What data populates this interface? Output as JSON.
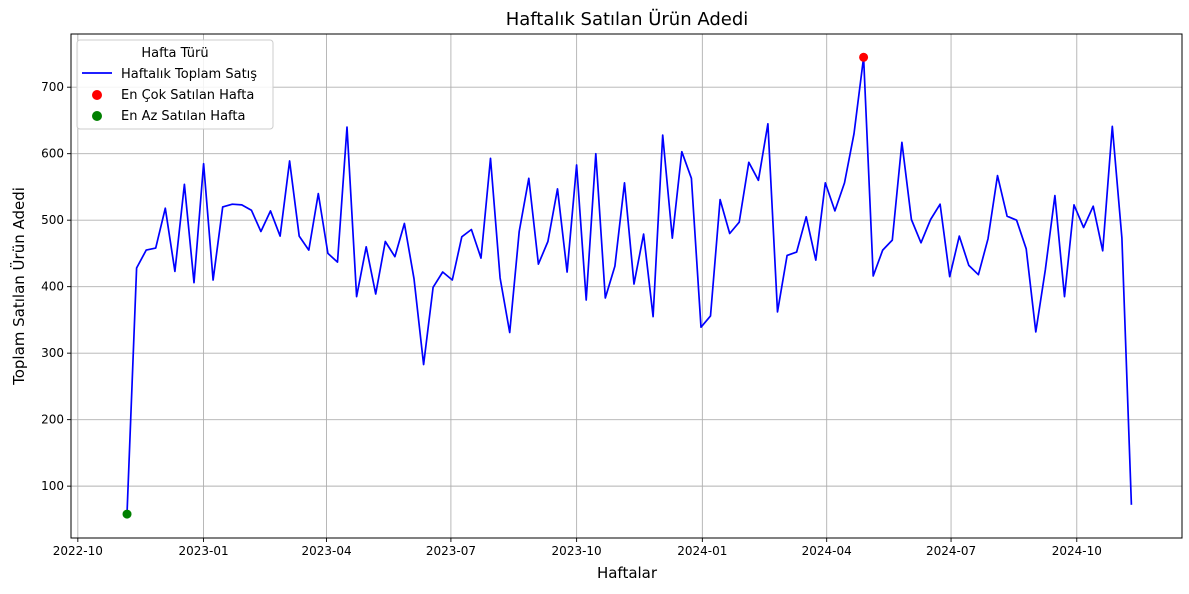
{
  "chart_data": {
    "type": "line",
    "title": "Haftalık Satılan Ürün Adedi",
    "xlabel": "Haftalar",
    "ylabel": "Toplam Satılan Ürün Adedi",
    "grid": true,
    "legend_title": "Hafta Türü",
    "legend_position": "top-left",
    "xlim": [
      "2022-09-26",
      "2024-12-17"
    ],
    "ylim": [
      22,
      780
    ],
    "x_ticks": [
      "2022-10-01",
      "2023-01-01",
      "2023-04-01",
      "2023-07-01",
      "2023-10-01",
      "2024-01-01",
      "2024-04-01",
      "2024-07-01",
      "2024-10-01"
    ],
    "x_tick_labels": [
      "2022-10",
      "2023-01",
      "2023-04",
      "2023-07",
      "2023-10",
      "2024-01",
      "2024-04",
      "2024-07",
      "2024-10"
    ],
    "y_ticks": [
      100,
      200,
      300,
      400,
      500,
      600,
      700
    ],
    "y_tick_labels": [
      "100",
      "200",
      "300",
      "400",
      "500",
      "600",
      "700"
    ],
    "series": [
      {
        "name": "Haftalık Toplam Satış",
        "color": "#0000ff",
        "x": [
          "2022-11-06",
          "2022-11-13",
          "2022-11-20",
          "2022-11-27",
          "2022-12-04",
          "2022-12-11",
          "2022-12-18",
          "2022-12-25",
          "2023-01-01",
          "2023-01-08",
          "2023-01-15",
          "2023-01-22",
          "2023-01-29",
          "2023-02-05",
          "2023-02-12",
          "2023-02-19",
          "2023-02-26",
          "2023-03-05",
          "2023-03-12",
          "2023-03-19",
          "2023-03-26",
          "2023-04-02",
          "2023-04-09",
          "2023-04-16",
          "2023-04-23",
          "2023-04-30",
          "2023-05-07",
          "2023-05-14",
          "2023-05-21",
          "2023-05-28",
          "2023-06-04",
          "2023-06-11",
          "2023-06-18",
          "2023-06-25",
          "2023-07-02",
          "2023-07-09",
          "2023-07-16",
          "2023-07-23",
          "2023-07-30",
          "2023-08-06",
          "2023-08-13",
          "2023-08-20",
          "2023-08-27",
          "2023-09-03",
          "2023-09-10",
          "2023-09-17",
          "2023-09-24",
          "2023-10-01",
          "2023-10-08",
          "2023-10-15",
          "2023-10-22",
          "2023-10-29",
          "2023-11-05",
          "2023-11-12",
          "2023-11-19",
          "2023-11-26",
          "2023-12-03",
          "2023-12-10",
          "2023-12-17",
          "2023-12-24",
          "2023-12-31",
          "2024-01-07",
          "2024-01-14",
          "2024-01-21",
          "2024-01-28",
          "2024-02-04",
          "2024-02-11",
          "2024-02-18",
          "2024-02-25",
          "2024-03-03",
          "2024-03-10",
          "2024-03-17",
          "2024-03-24",
          "2024-03-31",
          "2024-04-07",
          "2024-04-14",
          "2024-04-21",
          "2024-04-28",
          "2024-05-05",
          "2024-05-12",
          "2024-05-19",
          "2024-05-26",
          "2024-06-02",
          "2024-06-09",
          "2024-06-16",
          "2024-06-23",
          "2024-06-30",
          "2024-07-07",
          "2024-07-14",
          "2024-07-21",
          "2024-07-28",
          "2024-08-04",
          "2024-08-11",
          "2024-08-18",
          "2024-08-25",
          "2024-09-01",
          "2024-09-08",
          "2024-09-15",
          "2024-09-22",
          "2024-09-29",
          "2024-10-06",
          "2024-10-13",
          "2024-10-20",
          "2024-10-27",
          "2024-11-03",
          "2024-11-10"
        ],
        "y": [
          58,
          428,
          455,
          458,
          518,
          423,
          554,
          406,
          585,
          410,
          520,
          524,
          523,
          515,
          483,
          514,
          476,
          589,
          476,
          455,
          540,
          450,
          437,
          640,
          385,
          460,
          389,
          468,
          445,
          495,
          412,
          283,
          399,
          422,
          410,
          475,
          486,
          443,
          593,
          413,
          331,
          483,
          563,
          434,
          468,
          547,
          422,
          583,
          380,
          600,
          383,
          431,
          556,
          404,
          479,
          355,
          628,
          473,
          603,
          563,
          339,
          356,
          531,
          480,
          497,
          587,
          560,
          645,
          362,
          447,
          452,
          505,
          440,
          556,
          514,
          556,
          630,
          745,
          416,
          455,
          470,
          617,
          501,
          466,
          501,
          524,
          415,
          476,
          432,
          418,
          472,
          567,
          506,
          500,
          457,
          332,
          425,
          537,
          385,
          523,
          489,
          521,
          454,
          641,
          473,
          72
        ]
      }
    ],
    "highlights": [
      {
        "name": "En Çok Satılan Hafta",
        "color": "#ff0000",
        "x": "2024-04-28",
        "y": 745
      },
      {
        "name": "En Az Satılan Hafta",
        "color": "#008000",
        "x": "2022-11-06",
        "y": 58
      }
    ]
  }
}
